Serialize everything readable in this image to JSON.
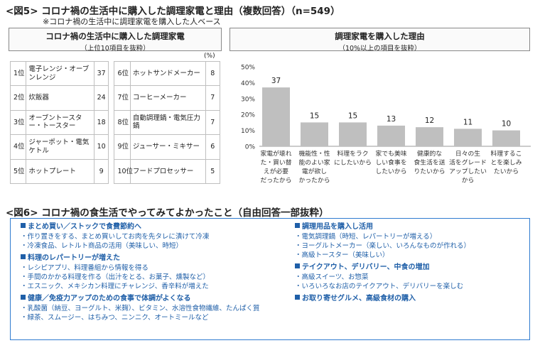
{
  "fig5": {
    "title": "<図5> コロナ禍の生活中に購入した調理家電と理由（複数回答）（n=549）",
    "note": "※コロナ禍の生活中に調理家電を購入した人ベース",
    "left_title": "コロナ禍の生活中に購入した調理家電",
    "left_subtitle": "（上位10項目を抜粋）",
    "unit": "(%)",
    "right_title": "調理家電を購入した理由",
    "right_subtitle": "（10%以上の項目を抜粋）",
    "rows": [
      {
        "rank_a": "1位",
        "name_a": "電子レンジ・オーブンレンジ",
        "value_a": "37",
        "rank_b": "6位",
        "name_b": "ホットサンドメーカー",
        "value_b": "8"
      },
      {
        "rank_a": "2位",
        "name_a": "炊飯器",
        "value_a": "24",
        "rank_b": "7位",
        "name_b": "コーヒーメーカー",
        "value_b": "7"
      },
      {
        "rank_a": "3位",
        "name_a": "オーブントースター・トースター",
        "value_a": "18",
        "rank_b": "8位",
        "name_b": "自動調理鍋・電気圧力鍋",
        "value_b": "7"
      },
      {
        "rank_a": "4位",
        "name_a": "ジャーポット・電気ケトル",
        "value_a": "10",
        "rank_b": "9位",
        "name_b": "ジューサー・ミキサー",
        "value_b": "6"
      },
      {
        "rank_a": "5位",
        "name_a": "ホットプレート",
        "value_a": "9",
        "rank_b": "10位",
        "name_b": "フードプロセッサー",
        "value_b": "5"
      }
    ]
  },
  "chart_data": {
    "type": "bar",
    "title": "調理家電を購入した理由",
    "categories": [
      [
        "家電が壊れ",
        "た・買い替",
        "えが必要",
        "だったから"
      ],
      [
        "機能性・性",
        "能のよい家",
        "電が欲し",
        "かったから"
      ],
      [
        "料理をラク",
        "にしたいから"
      ],
      [
        "家でも美味",
        "しい食事を",
        "したいから"
      ],
      [
        "健康的な",
        "食生活を送",
        "りたいから"
      ],
      [
        "日々の生",
        "活をグレード",
        "アップしたい",
        "から"
      ],
      [
        "料理するこ",
        "とを楽しみ",
        "たいから"
      ]
    ],
    "values": [
      37,
      15,
      15,
      13,
      12,
      11,
      10
    ],
    "ylim": [
      0,
      50
    ],
    "yticks": [
      0,
      10,
      20,
      30,
      40,
      50
    ],
    "ytick_labels": [
      "0%",
      "10%",
      "20%",
      "30%",
      "40%",
      "50%"
    ],
    "grid": false,
    "bar_color": "#bfbfbf"
  },
  "fig6": {
    "title": "<図6> コロナ禍の食生活でやってみてよかったこと（自由回答一部抜粋）",
    "accent": "#1f5fa8",
    "left_groups": [
      {
        "heading": "まとめ買い／ストックで食費節約へ",
        "items": [
          "・作り置きをする、まとめ買いしてお肉を先タレに漬けて冷凍",
          "・冷凍食品、レトルト商品の活用（美味しい、時短）"
        ]
      },
      {
        "heading": "料理のレパートリーが増えた",
        "items": [
          "・レシピアプリ、料理番組から情報を得る",
          "・手間のかかる料理を作る（出汁をとる、お菓子、燻製など）",
          "・エスニック、メキシカン料理にチャレンジ、香辛料が増えた"
        ]
      },
      {
        "heading": "健康／免疫力アップのための食事で体調がよくなる",
        "items": [
          "・乳酸菌（納豆、ヨーグルト、米麹）、ビタミン、水溶性食物繊維、たんぱく質",
          "・緑茶、スムージー、はちみつ、ニンニク、オートミールなど"
        ]
      }
    ],
    "right_groups": [
      {
        "heading": "調理用品を購入し活用",
        "items": [
          "・電気調理鍋（時短、レパートリーが増える）",
          "・ヨーグルトメーカー（楽しい、いろんなものが作れる）",
          "・高級トースター（美味しい）"
        ]
      },
      {
        "heading": "テイクアウト、デリバリー、中食の増加",
        "items": [
          "・高級スイーツ、お惣菜",
          "・いろいろなお店のテイクアウト、デリバリーを楽しむ"
        ]
      },
      {
        "heading": "お取り寄せグルメ、高級食材の購入",
        "items": []
      }
    ]
  }
}
